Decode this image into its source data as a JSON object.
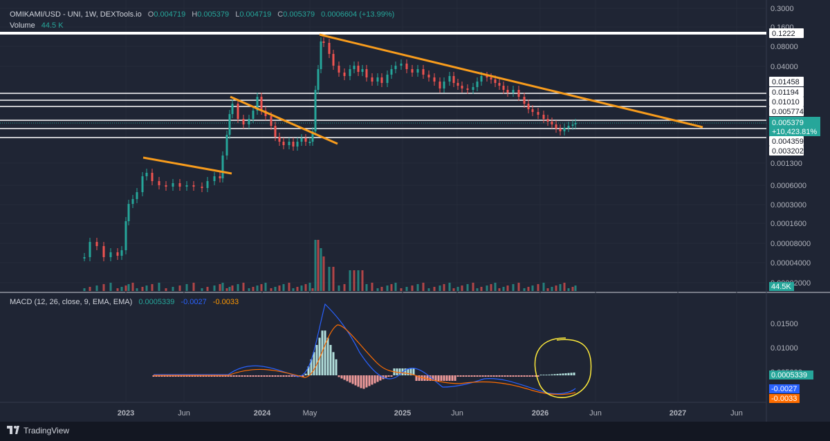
{
  "header": {
    "symbol": "OMIKAMI/USD - UNI, 1W, DEXTools.io",
    "o_label": "O",
    "o_value": "0.004719",
    "h_label": "H",
    "h_value": "0.005379",
    "l_label": "L",
    "l_value": "0.004719",
    "c_label": "C",
    "c_value": "0.005379",
    "change": "0.0006604 (+13.99%)",
    "volume_label": "Volume",
    "volume_value": "44.5 K"
  },
  "macd_header": {
    "label": "MACD (12, 26, close, 9, EMA, EMA)",
    "histogram": "0.0005339",
    "macd": "-0.0027",
    "signal": "-0.0033"
  },
  "brand": "TradingView",
  "colors": {
    "background": "#1f2534",
    "up": "#26a69a",
    "down": "#ef5350",
    "trendline": "#f89c1c",
    "level": "#ffffff",
    "macd": "#2962ff",
    "signal": "#ff6d00",
    "highlight": "#ffeb3b"
  },
  "chart_data": [
    {
      "type": "candlestick",
      "scale": "log",
      "y_ticks": [
        "0.3000",
        "0.1600",
        "0.08000",
        "0.04000",
        "0.001300",
        "0.0006000",
        "0.0003000",
        "0.0001600",
        "0.00008000",
        "0.00004000",
        "0.00002000"
      ],
      "x_ticks": [
        "2023",
        "Jun",
        "2024",
        "May",
        "2025",
        "Jun",
        "2026",
        "Jun",
        "2027",
        "Jun"
      ],
      "horizontal_levels": [
        "0.1222",
        "0.01458",
        "0.01194",
        "0.01010",
        "0.005774",
        "0.004359",
        "0.003202"
      ],
      "last_price": "0.005379",
      "last_change": "+10,423.81%",
      "volume_last": "44.5K"
    },
    {
      "type": "line",
      "name": "MACD (12, 26, close, 9, EMA, EMA)",
      "y_ticks": [
        "0.01500",
        "0.01000",
        "0.005000"
      ],
      "histogram_last": "0.0005339",
      "macd_last": "-0.0027",
      "signal_last": "-0.0033"
    }
  ]
}
